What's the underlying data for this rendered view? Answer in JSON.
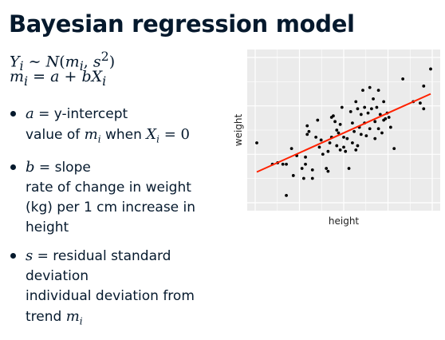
{
  "title": "Bayesian regression model",
  "model": {
    "eq1": {
      "lhs_var": "Y",
      "lhs_sub": "i",
      "tilde": "∼",
      "dist": "N",
      "open": "(",
      "arg1": "m",
      "arg1_sub": "i",
      "comma": ",",
      "arg2": "s",
      "arg2_sup": "2",
      "close": ")"
    },
    "eq2": {
      "lhs_var": "m",
      "lhs_sub": "i",
      "equals": "=",
      "a": "a",
      "plus": "+",
      "b": "b",
      "x": "X",
      "x_sub": "i"
    }
  },
  "bullets": [
    {
      "symbol": "a",
      "label": " = y-intercept",
      "line2_prefix": "value of ",
      "line2_var": "m",
      "line2_sub": "i",
      "line2_mid": " when ",
      "line2_x": "X",
      "line2_xsub": "i",
      "line2_eq": " = 0"
    },
    {
      "symbol": "b",
      "label": " = slope",
      "lines": [
        "rate of change in weight",
        "(kg) per 1 cm increase in",
        "height"
      ]
    },
    {
      "symbol": "s",
      "label": " = residual standard",
      "line2": "deviation",
      "line3": "individual deviation from",
      "line4_prefix": "trend ",
      "line4_var": "m",
      "line4_sub": "i"
    }
  ],
  "colors": {
    "panel_bg": "#ebebeb",
    "grid": "#ffffff",
    "point": "#000000",
    "trend": "#ff2200",
    "text": "#05192d"
  },
  "chart_data": {
    "type": "scatter",
    "xlabel": "height",
    "ylabel": "weight",
    "xlim": [
      0,
      10
    ],
    "ylim": [
      0,
      10
    ],
    "grid": true,
    "x_ticks_shown": false,
    "y_ticks_shown": false,
    "points": [
      [
        0,
        4.1
      ],
      [
        0.9,
        2.6
      ],
      [
        1.2,
        2.7
      ],
      [
        1.5,
        2.6
      ],
      [
        1.7,
        2.6
      ],
      [
        1.7,
        0.4
      ],
      [
        2,
        3.7
      ],
      [
        2.1,
        1.8
      ],
      [
        2.3,
        3.2
      ],
      [
        2.6,
        2.3
      ],
      [
        2.7,
        1.6
      ],
      [
        2.8,
        2.6
      ],
      [
        2.8,
        3.1
      ],
      [
        2.9,
        5.3
      ],
      [
        2.9,
        4.7
      ],
      [
        3.0,
        4.9
      ],
      [
        3.2,
        2.2
      ],
      [
        3.2,
        1.6
      ],
      [
        3.4,
        4.5
      ],
      [
        3.5,
        5.7
      ],
      [
        3.6,
        3.8
      ],
      [
        3.7,
        4.3
      ],
      [
        3.8,
        3.3
      ],
      [
        4,
        2.3
      ],
      [
        4.1,
        2.1
      ],
      [
        4.1,
        3.5
      ],
      [
        4.2,
        4.1
      ],
      [
        4.3,
        5.9
      ],
      [
        4.3,
        4.5
      ],
      [
        4.4,
        6.0
      ],
      [
        4.5,
        5.6
      ],
      [
        4.6,
        3.9
      ],
      [
        4.6,
        5.0
      ],
      [
        4.7,
        4.8
      ],
      [
        4.8,
        3.6
      ],
      [
        4.8,
        5.4
      ],
      [
        4.9,
        6.6
      ],
      [
        5,
        4.5
      ],
      [
        5,
        3.8
      ],
      [
        5.1,
        3.5
      ],
      [
        5.2,
        4.4
      ],
      [
        5.3,
        2.3
      ],
      [
        5.4,
        6.3
      ],
      [
        5.5,
        4.1
      ],
      [
        5.5,
        5.5
      ],
      [
        5.6,
        4.9
      ],
      [
        5.7,
        3.6
      ],
      [
        5.7,
        7.0
      ],
      [
        5.8,
        6.5
      ],
      [
        5.8,
        3.9
      ],
      [
        5.9,
        5.2
      ],
      [
        6,
        4.7
      ],
      [
        6,
        6.1
      ],
      [
        6.1,
        7.8
      ],
      [
        6.2,
        5.5
      ],
      [
        6.2,
        6.6
      ],
      [
        6.3,
        4.6
      ],
      [
        6.4,
        6.2
      ],
      [
        6.5,
        5.1
      ],
      [
        6.5,
        8.0
      ],
      [
        6.6,
        6.5
      ],
      [
        6.7,
        7.2
      ],
      [
        6.8,
        4.4
      ],
      [
        6.8,
        5.6
      ],
      [
        6.9,
        6.6
      ],
      [
        7,
        5.1
      ],
      [
        7,
        7.8
      ],
      [
        7.1,
        6.1
      ],
      [
        7.2,
        4.8
      ],
      [
        7.3,
        5.7
      ],
      [
        7.3,
        7.0
      ],
      [
        7.4,
        5.8
      ],
      [
        7.5,
        6.2
      ],
      [
        7.6,
        5.9
      ],
      [
        7.7,
        5.2
      ],
      [
        7.9,
        3.7
      ],
      [
        8.4,
        8.6
      ],
      [
        9,
        7
      ],
      [
        9.4,
        6.9
      ],
      [
        9.6,
        6.5
      ],
      [
        9.6,
        8.1
      ],
      [
        10,
        9.3
      ]
    ],
    "trend": {
      "x": [
        0,
        10
      ],
      "y": [
        2.05,
        7.55
      ]
    }
  }
}
